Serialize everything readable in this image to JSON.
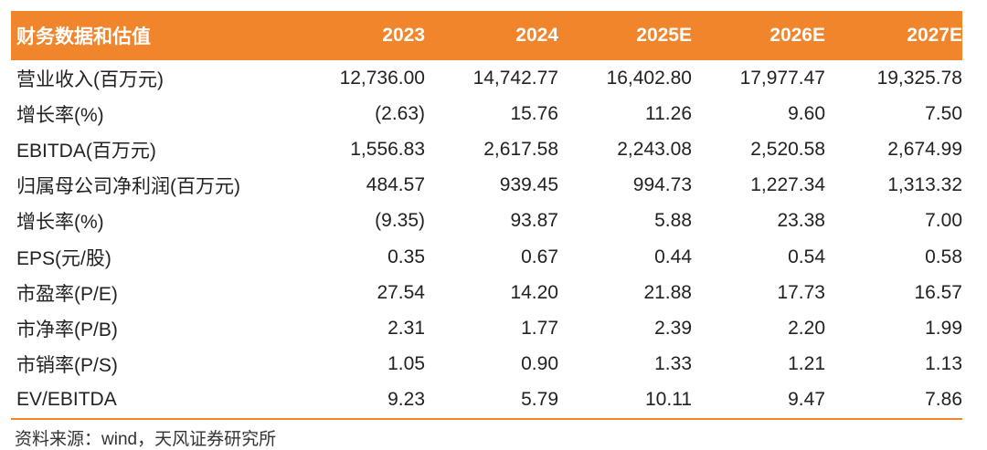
{
  "header": {
    "title": "财务数据和估值",
    "years": [
      "2023",
      "2024",
      "2025E",
      "2026E",
      "2027E"
    ]
  },
  "rows": [
    {
      "label": "营业收入(百万元)",
      "values": [
        "12,736.00",
        "14,742.77",
        "16,402.80",
        "17,977.47",
        "19,325.78"
      ]
    },
    {
      "label": "增长率(%)",
      "values": [
        "(2.63)",
        "15.76",
        "11.26",
        "9.60",
        "7.50"
      ]
    },
    {
      "label": "EBITDA(百万元)",
      "values": [
        "1,556.83",
        "2,617.58",
        "2,243.08",
        "2,520.58",
        "2,674.99"
      ]
    },
    {
      "label": "归属母公司净利润(百万元)",
      "values": [
        "484.57",
        "939.45",
        "994.73",
        "1,227.34",
        "1,313.32"
      ]
    },
    {
      "label": "增长率(%)",
      "values": [
        "(9.35)",
        "93.87",
        "5.88",
        "23.38",
        "7.00"
      ]
    },
    {
      "label": "EPS(元/股)",
      "values": [
        "0.35",
        "0.67",
        "0.44",
        "0.54",
        "0.58"
      ]
    },
    {
      "label": "市盈率(P/E)",
      "values": [
        "27.54",
        "14.20",
        "21.88",
        "17.73",
        "16.57"
      ]
    },
    {
      "label": "市净率(P/B)",
      "values": [
        "2.31",
        "1.77",
        "2.39",
        "2.20",
        "1.99"
      ]
    },
    {
      "label": "市销率(P/S)",
      "values": [
        "1.05",
        "0.90",
        "1.33",
        "1.21",
        "1.13"
      ]
    },
    {
      "label": "EV/EBITDA",
      "values": [
        "9.23",
        "5.79",
        "10.11",
        "9.47",
        "7.86"
      ]
    }
  ],
  "source": "资料来源：wind，天风证券研究所",
  "colors": {
    "header_bg": "#f0852b",
    "header_text": "#ffffff",
    "rule": "#f0852b"
  }
}
